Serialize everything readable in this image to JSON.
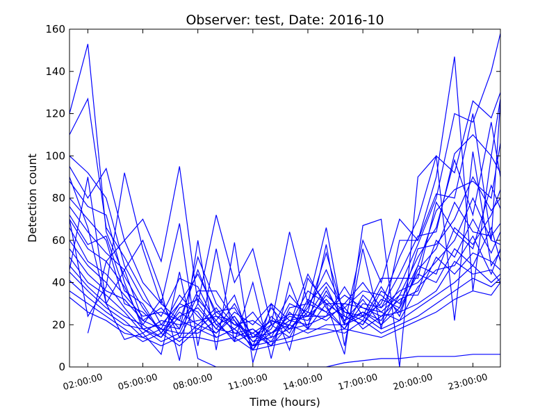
{
  "chart_data": {
    "type": "line",
    "title": "Observer: test, Date: 2016-10",
    "xlabel": "Time (hours)",
    "ylabel": "Detection count",
    "xlim": [
      1,
      24.5
    ],
    "ylim": [
      0,
      160
    ],
    "x_ticks": [
      {
        "value": 2,
        "label": "02:00:00"
      },
      {
        "value": 5,
        "label": "05:00:00"
      },
      {
        "value": 8,
        "label": "08:00:00"
      },
      {
        "value": 11,
        "label": "11:00:00"
      },
      {
        "value": 14,
        "label": "14:00:00"
      },
      {
        "value": 17,
        "label": "17:00:00"
      },
      {
        "value": 20,
        "label": "20:00:00"
      },
      {
        "value": 23,
        "label": "23:00:00"
      }
    ],
    "y_ticks": [
      0,
      20,
      40,
      60,
      80,
      100,
      120,
      140,
      160
    ],
    "grid": false,
    "line_color": "#0000ff",
    "x": [
      1,
      2,
      3,
      4,
      5,
      6,
      7,
      8,
      9,
      10,
      11,
      12,
      13,
      14,
      15,
      16,
      17,
      18,
      19,
      20,
      21,
      22,
      23,
      24,
      24.5
    ],
    "series": [
      {
        "values": [
          120,
          153,
          64,
          43,
          28,
          16,
          30,
          44,
          26,
          28,
          14,
          20,
          25,
          24,
          38,
          20,
          26,
          22,
          38,
          58,
          80,
          120,
          116,
          140,
          158
        ]
      },
      {
        "values": [
          110,
          127,
          66,
          52,
          36,
          20,
          18,
          52,
          30,
          20,
          16,
          22,
          18,
          28,
          46,
          26,
          24,
          30,
          52,
          70,
          100,
          92,
          126,
          118,
          130
        ]
      },
      {
        "values": [
          100,
          92,
          80,
          48,
          32,
          24,
          42,
          38,
          20,
          24,
          10,
          16,
          20,
          36,
          30,
          30,
          40,
          28,
          44,
          62,
          64,
          101,
          110,
          100,
          92
        ]
      },
      {
        "values": [
          95,
          80,
          94,
          60,
          40,
          30,
          22,
          46,
          24,
          18,
          26,
          14,
          30,
          26,
          54,
          24,
          20,
          36,
          30,
          48,
          74,
          84,
          88,
          80,
          106
        ]
      },
      {
        "values": [
          88,
          76,
          72,
          40,
          18,
          14,
          28,
          32,
          22,
          34,
          8,
          24,
          16,
          32,
          26,
          34,
          28,
          26,
          34,
          52,
          66,
          98,
          72,
          116,
          90
        ]
      },
      {
        "values": [
          80,
          70,
          60,
          30,
          26,
          18,
          34,
          24,
          16,
          26,
          20,
          30,
          22,
          20,
          36,
          22,
          32,
          20,
          28,
          56,
          58,
          70,
          90,
          74,
          80
        ]
      },
      {
        "values": [
          76,
          64,
          54,
          46,
          22,
          28,
          18,
          36,
          36,
          22,
          12,
          18,
          34,
          24,
          24,
          38,
          24,
          42,
          42,
          42,
          78,
          64,
          56,
          86,
          75
        ]
      },
      {
        "values": [
          72,
          58,
          62,
          36,
          30,
          16,
          26,
          20,
          28,
          16,
          18,
          10,
          28,
          30,
          40,
          28,
          36,
          34,
          26,
          46,
          56,
          78,
          64,
          62,
          68
        ]
      },
      {
        "values": [
          70,
          56,
          50,
          38,
          20,
          32,
          14,
          30,
          18,
          30,
          14,
          22,
          20,
          44,
          28,
          18,
          30,
          28,
          36,
          40,
          50,
          60,
          80,
          60,
          58
        ]
      },
      {
        "values": [
          66,
          50,
          44,
          34,
          24,
          26,
          22,
          18,
          26,
          20,
          22,
          16,
          24,
          22,
          34,
          26,
          22,
          38,
          24,
          48,
          44,
          66,
          58,
          72,
          84
        ]
      },
      {
        "values": [
          60,
          48,
          40,
          28,
          18,
          20,
          30,
          26,
          14,
          18,
          10,
          28,
          18,
          26,
          22,
          30,
          28,
          24,
          32,
          36,
          60,
          52,
          70,
          54,
          64
        ]
      },
      {
        "values": [
          56,
          44,
          36,
          32,
          22,
          18,
          16,
          34,
          20,
          14,
          18,
          12,
          26,
          18,
          30,
          24,
          20,
          32,
          28,
          44,
          40,
          56,
          48,
          66,
          50
        ]
      },
      {
        "values": [
          52,
          40,
          34,
          26,
          16,
          22,
          20,
          22,
          24,
          22,
          8,
          20,
          14,
          30,
          26,
          18,
          34,
          26,
          22,
          38,
          46,
          48,
          62,
          44,
          56
        ]
      },
      {
        "values": [
          48,
          38,
          30,
          24,
          20,
          14,
          24,
          28,
          18,
          16,
          14,
          16,
          22,
          24,
          32,
          22,
          26,
          20,
          34,
          34,
          52,
          44,
          54,
          50,
          46
        ]
      },
      {
        "values": [
          45,
          36,
          28,
          22,
          14,
          18,
          12,
          20,
          16,
          24,
          12,
          14,
          18,
          20,
          24,
          28,
          18,
          24,
          26,
          30,
          36,
          50,
          44,
          46,
          40
        ]
      },
      {
        "values": [
          41,
          33,
          26,
          20,
          18,
          12,
          16,
          16,
          22,
          12,
          16,
          10,
          20,
          16,
          20,
          20,
          24,
          18,
          22,
          28,
          34,
          40,
          48,
          40,
          44
        ]
      },
      {
        "values": [
          36,
          30,
          24,
          18,
          12,
          16,
          10,
          18,
          14,
          18,
          10,
          12,
          14,
          18,
          18,
          16,
          22,
          16,
          20,
          24,
          30,
          36,
          42,
          38,
          42
        ]
      },
      {
        "values": [
          33,
          26,
          22,
          16,
          14,
          10,
          14,
          14,
          12,
          14,
          8,
          10,
          12,
          14,
          16,
          18,
          16,
          14,
          18,
          22,
          26,
          32,
          36,
          34,
          40
        ]
      },
      {
        "values": [
          null,
          16,
          50,
          60,
          70,
          50,
          95,
          30,
          72,
          40,
          56,
          20,
          64,
          30,
          66,
          20,
          60,
          40,
          70,
          60,
          90,
          147,
          36,
          100,
          127
        ]
      },
      {
        "values": [
          70,
          24,
          38,
          92,
          56,
          30,
          68,
          10,
          56,
          12,
          40,
          4,
          40,
          18,
          58,
          10,
          56,
          18,
          60,
          60,
          82,
          80,
          120,
          60,
          126
        ]
      },
      {
        "values": [
          90,
          66,
          30,
          46,
          60,
          36,
          3,
          60,
          8,
          59,
          2,
          30,
          8,
          42,
          30,
          6,
          67,
          70,
          0,
          90,
          100,
          22,
          102,
          48,
          55
        ]
      },
      {
        "values": [
          46,
          90,
          30,
          13,
          16,
          6,
          45,
          4,
          0,
          0,
          0,
          0,
          0,
          0,
          0,
          2,
          3,
          4,
          4,
          5,
          5,
          5,
          6,
          6,
          6
        ]
      }
    ]
  }
}
